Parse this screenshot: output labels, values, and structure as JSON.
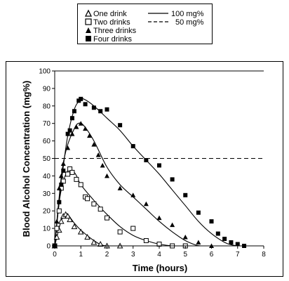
{
  "chart_data": {
    "type": "scatter",
    "xlabel": "Time (hours)",
    "ylabel": "Blood Alcohol Concentration (mg%)",
    "xlim": [
      0,
      8
    ],
    "ylim": [
      0,
      100
    ],
    "x_ticks": [
      0,
      1,
      2,
      3,
      4,
      5,
      6,
      7,
      8
    ],
    "y_ticks": [
      0,
      10,
      20,
      30,
      40,
      50,
      60,
      70,
      80,
      90,
      100
    ],
    "grid": false,
    "legend_placement": "above chart",
    "legend": {
      "one_drink": "One drink",
      "two_drinks": "Two drinks",
      "three_drinks": "Three drinks",
      "four_drinks": "Four drinks",
      "line_100": "100 mg%",
      "line_50": "50 mg%"
    },
    "reference_lines": [
      {
        "y": 100,
        "style": "solid"
      },
      {
        "y": 50,
        "style": "dashed"
      }
    ],
    "series": [
      {
        "name": "One drink",
        "marker": "open-triangle",
        "points": [
          [
            0,
            0
          ],
          [
            0.08,
            5
          ],
          [
            0.17,
            9
          ],
          [
            0.25,
            14
          ],
          [
            0.33,
            17
          ],
          [
            0.42,
            18
          ],
          [
            0.5,
            17
          ],
          [
            0.58,
            15
          ],
          [
            0.75,
            11
          ],
          [
            1.0,
            8
          ],
          [
            1.25,
            5
          ],
          [
            1.5,
            2
          ],
          [
            1.75,
            1
          ],
          [
            2.0,
            0
          ],
          [
            2.5,
            0
          ]
        ],
        "curve": [
          [
            0,
            0
          ],
          [
            0.1,
            6
          ],
          [
            0.2,
            12
          ],
          [
            0.3,
            16
          ],
          [
            0.4,
            18
          ],
          [
            0.5,
            18
          ],
          [
            0.75,
            13
          ],
          [
            1.0,
            9
          ],
          [
            1.5,
            3
          ],
          [
            1.8,
            0.5
          ],
          [
            2.0,
            0
          ]
        ]
      },
      {
        "name": "Two drinks",
        "marker": "open-square",
        "points": [
          [
            0,
            0
          ],
          [
            0.08,
            10
          ],
          [
            0.17,
            20
          ],
          [
            0.25,
            33
          ],
          [
            0.33,
            37
          ],
          [
            0.5,
            41
          ],
          [
            0.58,
            44
          ],
          [
            0.67,
            42
          ],
          [
            0.83,
            38
          ],
          [
            1.0,
            35
          ],
          [
            1.17,
            28
          ],
          [
            1.25,
            27
          ],
          [
            1.5,
            24
          ],
          [
            1.75,
            21
          ],
          [
            2.0,
            16
          ],
          [
            2.5,
            8
          ],
          [
            3.0,
            10
          ],
          [
            3.5,
            3
          ],
          [
            4.0,
            1
          ],
          [
            4.5,
            0
          ],
          [
            5.0,
            0
          ]
        ],
        "curve": [
          [
            0,
            0
          ],
          [
            0.1,
            15
          ],
          [
            0.2,
            28
          ],
          [
            0.35,
            38
          ],
          [
            0.5,
            43
          ],
          [
            0.6,
            44
          ],
          [
            0.8,
            41
          ],
          [
            1.0,
            35
          ],
          [
            1.5,
            26
          ],
          [
            2.0,
            18
          ],
          [
            2.5,
            11
          ],
          [
            3.0,
            6
          ],
          [
            3.5,
            3
          ],
          [
            4.0,
            1
          ],
          [
            4.5,
            0
          ]
        ]
      },
      {
        "name": "Three drinks",
        "marker": "filled-triangle",
        "points": [
          [
            0,
            0
          ],
          [
            0.08,
            14
          ],
          [
            0.17,
            33
          ],
          [
            0.25,
            40
          ],
          [
            0.33,
            47
          ],
          [
            0.5,
            56
          ],
          [
            0.67,
            64
          ],
          [
            0.83,
            68
          ],
          [
            1.0,
            70
          ],
          [
            1.17,
            67
          ],
          [
            1.33,
            63
          ],
          [
            1.5,
            58
          ],
          [
            1.67,
            52
          ],
          [
            1.83,
            46
          ],
          [
            2.0,
            40
          ],
          [
            2.5,
            33
          ],
          [
            3.0,
            29
          ],
          [
            3.5,
            24
          ],
          [
            4.0,
            16
          ],
          [
            4.5,
            12
          ],
          [
            5.0,
            5
          ],
          [
            5.5,
            2
          ],
          [
            6.0,
            0
          ]
        ],
        "curve": [
          [
            0,
            0
          ],
          [
            0.15,
            25
          ],
          [
            0.3,
            45
          ],
          [
            0.5,
            58
          ],
          [
            0.75,
            67
          ],
          [
            0.9,
            70
          ],
          [
            1.1,
            69
          ],
          [
            1.5,
            60
          ],
          [
            2.0,
            45
          ],
          [
            2.5,
            35
          ],
          [
            3.0,
            28
          ],
          [
            3.5,
            21
          ],
          [
            4.0,
            14
          ],
          [
            4.5,
            8
          ],
          [
            5.0,
            3
          ],
          [
            5.4,
            0.5
          ],
          [
            5.6,
            0
          ]
        ]
      },
      {
        "name": "Four drinks",
        "marker": "filled-square",
        "points": [
          [
            0,
            0
          ],
          [
            0.17,
            25
          ],
          [
            0.25,
            35
          ],
          [
            0.33,
            43
          ],
          [
            0.5,
            64
          ],
          [
            0.58,
            66
          ],
          [
            0.67,
            73
          ],
          [
            0.75,
            77
          ],
          [
            0.92,
            83
          ],
          [
            1.0,
            84
          ],
          [
            1.17,
            81
          ],
          [
            1.5,
            79
          ],
          [
            1.75,
            77
          ],
          [
            2.0,
            78
          ],
          [
            2.5,
            69
          ],
          [
            3.0,
            57
          ],
          [
            3.5,
            49
          ],
          [
            4.0,
            46
          ],
          [
            4.5,
            38
          ],
          [
            5.0,
            29
          ],
          [
            5.5,
            19
          ],
          [
            6.0,
            14
          ],
          [
            6.25,
            7
          ],
          [
            6.5,
            4
          ],
          [
            6.75,
            2
          ],
          [
            7.0,
            1
          ],
          [
            7.25,
            0
          ]
        ],
        "curve": [
          [
            0,
            0
          ],
          [
            0.1,
            15
          ],
          [
            0.3,
            42
          ],
          [
            0.5,
            63
          ],
          [
            0.75,
            78
          ],
          [
            0.95,
            83
          ],
          [
            1.1,
            84
          ],
          [
            1.5,
            80
          ],
          [
            2.0,
            73
          ],
          [
            2.5,
            66
          ],
          [
            3.0,
            57
          ],
          [
            3.5,
            49
          ],
          [
            4.0,
            41
          ],
          [
            4.5,
            32
          ],
          [
            5.0,
            23
          ],
          [
            5.5,
            14
          ],
          [
            6.0,
            7
          ],
          [
            6.5,
            2
          ],
          [
            6.8,
            0.5
          ],
          [
            7.0,
            0
          ]
        ]
      }
    ]
  }
}
